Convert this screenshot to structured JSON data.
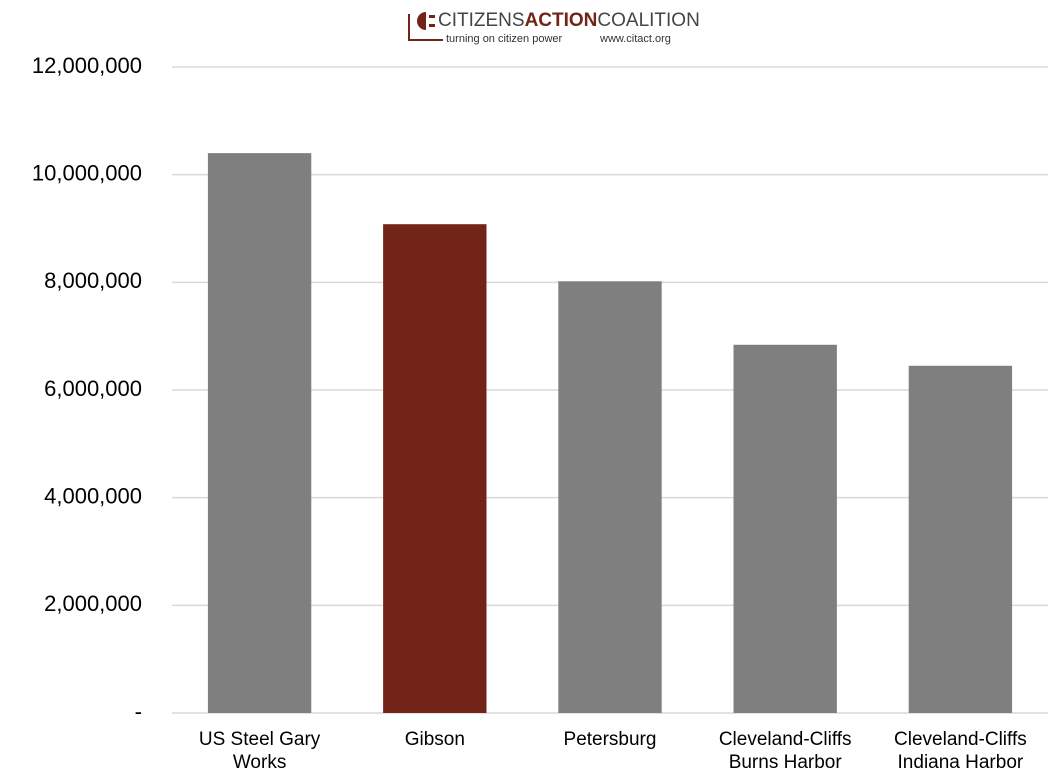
{
  "logo": {
    "name_parts": [
      "CITIZENS",
      "ACTION",
      "COALITION"
    ],
    "tagline": "turning on citizen power",
    "url": "www.citact.org"
  },
  "chart_data": {
    "type": "bar",
    "categories": [
      "US Steel Gary Works",
      "Gibson",
      "Petersburg",
      "Cleveland-Cliffs Burns Harbor",
      "Cleveland-Cliffs Indiana Harbor"
    ],
    "values": [
      10400000,
      9080000,
      8020000,
      6840000,
      6450000
    ],
    "colors": [
      "#7f7f7f",
      "#722418",
      "#7f7f7f",
      "#7f7f7f",
      "#7f7f7f"
    ],
    "ylim": [
      0,
      12000000
    ],
    "yticks": [
      {
        "value": 0,
        "label": "-"
      },
      {
        "value": 2000000,
        "label": "2,000,000"
      },
      {
        "value": 4000000,
        "label": "4,000,000"
      },
      {
        "value": 6000000,
        "label": "6,000,000"
      },
      {
        "value": 8000000,
        "label": "8,000,000"
      },
      {
        "value": 10000000,
        "label": "10,000,000"
      },
      {
        "value": 12000000,
        "label": "12,000,000"
      }
    ],
    "grid": true
  }
}
